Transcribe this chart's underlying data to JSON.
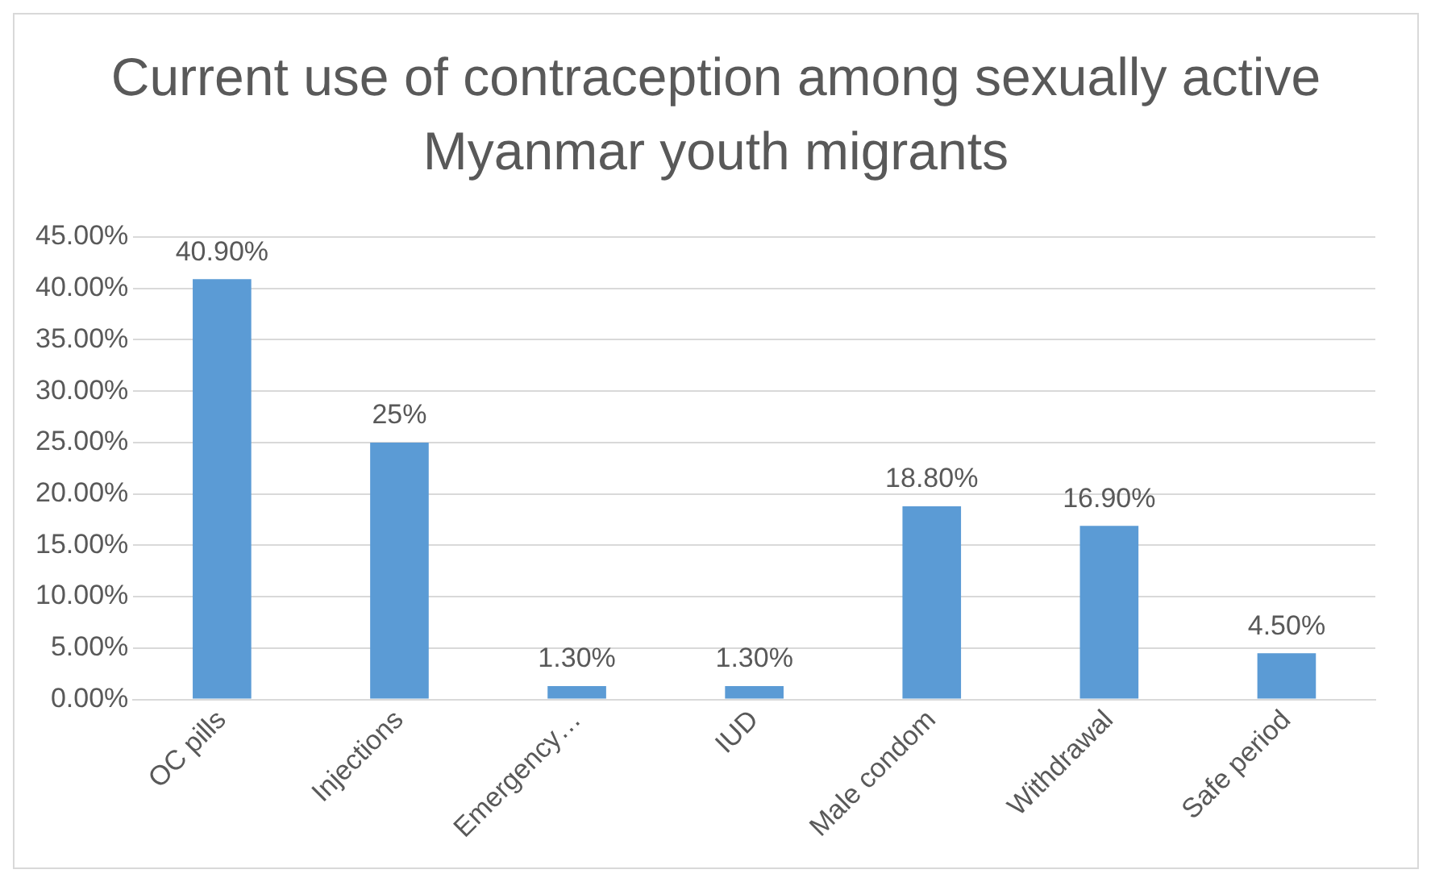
{
  "chart_data": {
    "type": "bar",
    "title": "Current use of contraception among sexually active Myanmar youth migrants",
    "categories": [
      "OC pills",
      "Injections",
      "Emergency…",
      "IUD",
      "Male condom",
      "Withdrawal",
      "Safe period"
    ],
    "values": [
      40.9,
      25,
      1.3,
      1.3,
      18.8,
      16.9,
      4.5
    ],
    "value_labels": [
      "40.90%",
      "25%",
      "1.30%",
      "1.30%",
      "18.80%",
      "16.90%",
      "4.50%"
    ],
    "color": "#5b9bd5",
    "ylim": [
      0,
      45
    ],
    "yticks": [
      {
        "value": 0,
        "label": "0.00%"
      },
      {
        "value": 5,
        "label": "5.00%"
      },
      {
        "value": 10,
        "label": "10.00%"
      },
      {
        "value": 15,
        "label": "15.00%"
      },
      {
        "value": 20,
        "label": "20.00%"
      },
      {
        "value": 25,
        "label": "25.00%"
      },
      {
        "value": 30,
        "label": "30.00%"
      },
      {
        "value": 35,
        "label": "35.00%"
      },
      {
        "value": 40,
        "label": "40.00%"
      },
      {
        "value": 45,
        "label": "45.00%"
      }
    ],
    "grid": "y",
    "legend": false
  }
}
